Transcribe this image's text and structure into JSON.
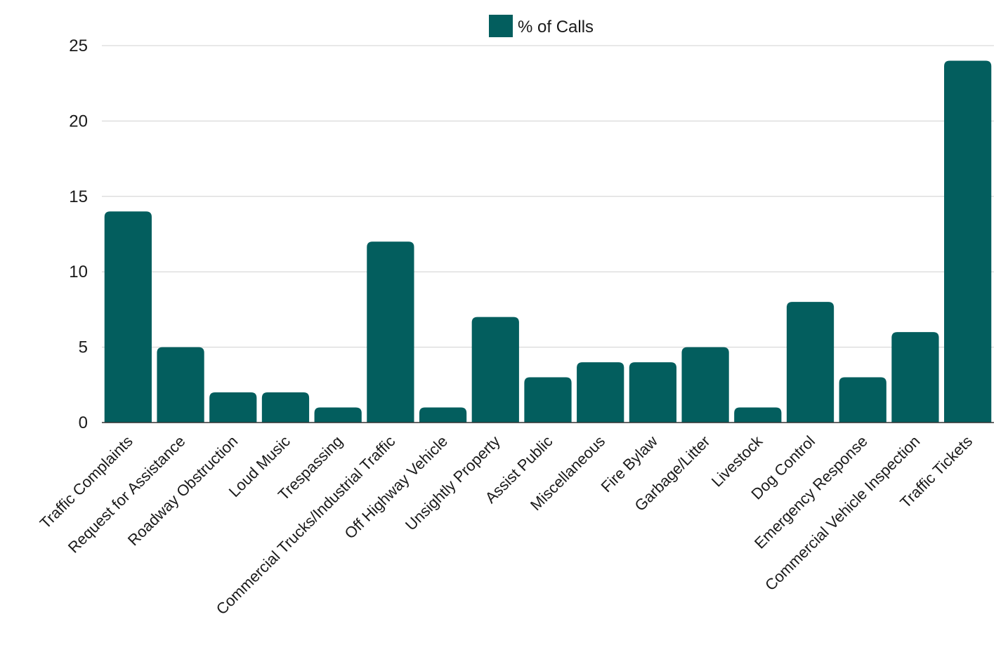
{
  "colors": {
    "bar": "#035e5e",
    "grid": "#d0d0d0",
    "text": "#1a1a1a",
    "background": "#ffffff"
  },
  "chart_data": {
    "type": "bar",
    "title": "",
    "xlabel": "",
    "ylabel": "",
    "ylim": [
      0,
      25
    ],
    "yticks": [
      0,
      5,
      10,
      15,
      20,
      25
    ],
    "grid": true,
    "legend": {
      "placement": "top-center",
      "entries": [
        "% of Calls"
      ]
    },
    "categories": [
      "Traffic Complaints",
      "Request for Assistance",
      "Roadway Obstruction",
      "Loud Music",
      "Trespassing",
      "Commercial Trucks/Industrial Traffic",
      "Off Highway Vehicle",
      "Unsightly Property",
      "Assist Public",
      "Miscellaneous",
      "Fire Bylaw",
      "Garbage/Litter",
      "Livestock",
      "Dog Control",
      "Emergency Response",
      "Commercial Vehicle Inspection",
      "Traffic Tickets"
    ],
    "series": [
      {
        "name": "% of Calls",
        "values": [
          14,
          5,
          2,
          2,
          1,
          12,
          1,
          7,
          3,
          4,
          4,
          5,
          1,
          8,
          3,
          6,
          24
        ]
      }
    ]
  }
}
